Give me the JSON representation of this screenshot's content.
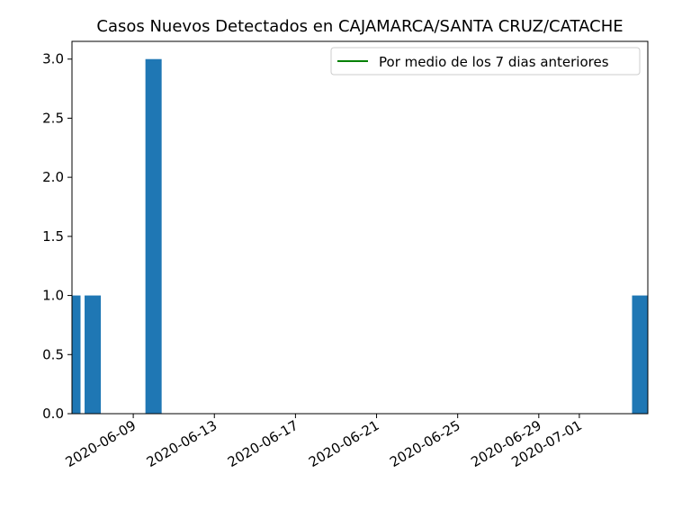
{
  "chart_data": {
    "type": "bar",
    "title": "Casos Nuevos Detectados en CAJAMARCA/SANTA CRUZ/CATACHE",
    "xlabel": "",
    "ylabel": "",
    "x_axis_type": "date",
    "xlim": [
      "2020-06-06",
      "2020-07-04"
    ],
    "ylim": [
      0,
      3.15
    ],
    "yticks": [
      0.0,
      0.5,
      1.0,
      1.5,
      2.0,
      2.5,
      3.0
    ],
    "ytick_labels": [
      "0.0",
      "0.5",
      "1.0",
      "1.5",
      "2.0",
      "2.5",
      "3.0"
    ],
    "xticks": [
      "2020-06-09",
      "2020-06-13",
      "2020-06-17",
      "2020-06-21",
      "2020-06-25",
      "2020-06-29",
      "2020-07-01"
    ],
    "bars": [
      {
        "date": "2020-06-06",
        "value": 1
      },
      {
        "date": "2020-06-07",
        "value": 1
      },
      {
        "date": "2020-06-10",
        "value": 3
      },
      {
        "date": "2020-07-04",
        "value": 1
      }
    ],
    "bar_color": "#1f77b4",
    "line_series": {
      "name": "Por medio de los 7 dias anteriores",
      "color": "#008000",
      "values": []
    },
    "legend": {
      "placement": "top-right",
      "entries": [
        "Por medio de los 7 dias anteriores"
      ]
    },
    "grid": false
  }
}
